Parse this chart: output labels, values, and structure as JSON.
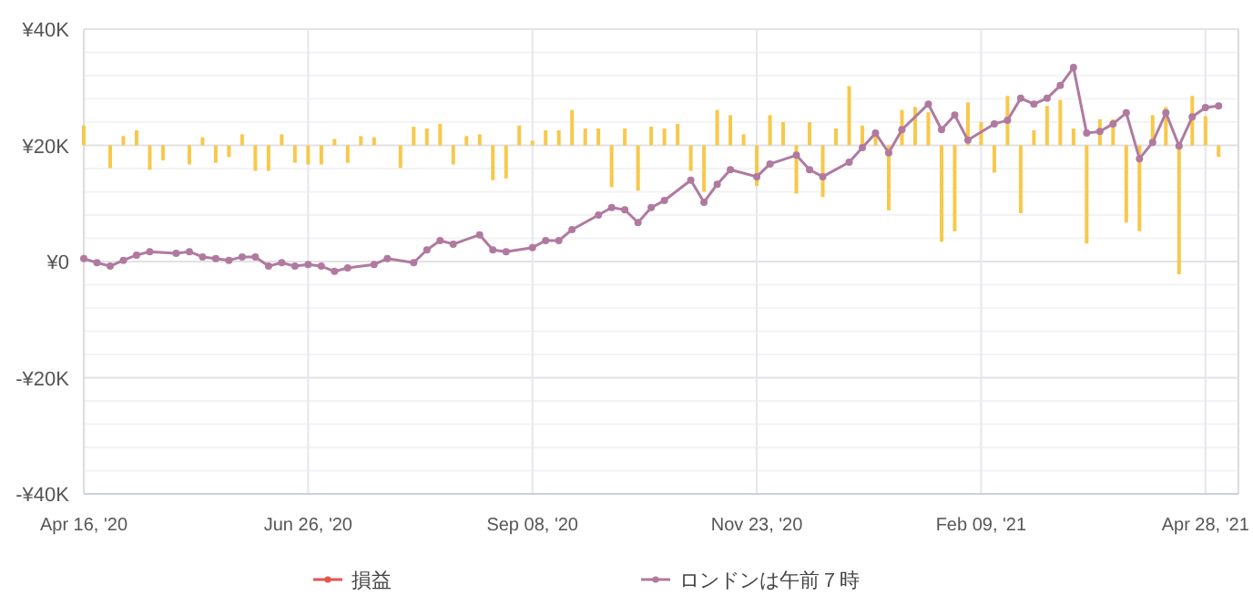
{
  "chart_data": {
    "type": "line",
    "categories": [
      "Apr 16, '20",
      null,
      null,
      null,
      null,
      null,
      null,
      null,
      null,
      null,
      null,
      null,
      null,
      null,
      null,
      null,
      null,
      "Jun 26, '20",
      null,
      null,
      null,
      null,
      null,
      null,
      null,
      null,
      null,
      null,
      null,
      null,
      null,
      null,
      null,
      null,
      "Sep 08, '20",
      null,
      null,
      null,
      null,
      null,
      null,
      null,
      null,
      null,
      null,
      null,
      null,
      null,
      null,
      null,
      null,
      "Nov 23, '20",
      null,
      null,
      null,
      null,
      null,
      null,
      null,
      null,
      null,
      null,
      null,
      null,
      null,
      null,
      null,
      null,
      "Feb 09, '21",
      null,
      null,
      null,
      null,
      null,
      null,
      null,
      null,
      null,
      null,
      null,
      null,
      null,
      null,
      null,
      null,
      "Apr 28, '21",
      null
    ],
    "ylim": [
      -40000,
      40000
    ],
    "yticks": [
      {
        "value": -40000,
        "label": "-¥40K"
      },
      {
        "value": -20000,
        "label": "-¥20K"
      },
      {
        "value": 0,
        "label": "¥0"
      },
      {
        "value": 20000,
        "label": "¥20K"
      },
      {
        "value": 40000,
        "label": "¥40K"
      }
    ],
    "grid": true,
    "legend": "bottom",
    "marker": "circle",
    "series": [
      {
        "type": "bar",
        "color": "#f8c84a",
        "values": [
          3400,
          null,
          -3900,
          1600,
          2600,
          -4200,
          -2600,
          null,
          -3300,
          1400,
          -3000,
          -2000,
          1900,
          -4400,
          -4400,
          1900,
          -3000,
          -3300,
          -3300,
          1100,
          -3000,
          1600,
          1400,
          null,
          -3900,
          3200,
          2900,
          3700,
          -3300,
          1600,
          1900,
          -6000,
          -5700,
          3400,
          800,
          2600,
          2600,
          6100,
          2900,
          2900,
          -7200,
          2900,
          -7800,
          3200,
          2900,
          3700,
          -4400,
          -8000,
          6100,
          5200,
          1900,
          -7000,
          5200,
          4000,
          -8300,
          4000,
          -8900,
          2900,
          10200,
          3400,
          2600,
          -11200,
          6100,
          6600,
          5700,
          -16600,
          -14800,
          7400,
          4000,
          -4700,
          8500,
          -11700,
          2600,
          6800,
          7800,
          2900,
          -16900,
          4500,
          4500,
          -13300,
          -14800,
          5200,
          6600,
          -22200,
          8500,
          5000,
          -2000
        ],
        "base": [
          20000,
          null,
          20000,
          20000,
          20000,
          20000,
          20000,
          null,
          20000,
          20000,
          20000,
          20000,
          20000,
          20000,
          20000,
          20000,
          20000,
          20000,
          20000,
          20000,
          20000,
          20000,
          20000,
          null,
          20000,
          20000,
          20000,
          20000,
          20000,
          20000,
          20000,
          20000,
          20000,
          20000,
          20000,
          20000,
          20000,
          20000,
          20000,
          20000,
          20000,
          20000,
          20000,
          20000,
          20000,
          20000,
          20000,
          20000,
          20000,
          20000,
          20000,
          20000,
          20000,
          20000,
          20000,
          20000,
          20000,
          20000,
          20000,
          20000,
          20000,
          20000,
          20000,
          20000,
          20000,
          20000,
          20000,
          20000,
          20000,
          20000,
          20000,
          20000,
          20000,
          20000,
          20000,
          20000,
          20000,
          20000,
          20000,
          20000,
          20000,
          20000,
          20000,
          20000,
          20000,
          20000,
          20000
        ]
      },
      {
        "name": "損益",
        "color": "#e8534f",
        "values": [
          null,
          null,
          null,
          null,
          null,
          null,
          null,
          null,
          null,
          null,
          null,
          null,
          null,
          null,
          null,
          null,
          null,
          null,
          null,
          null,
          null,
          null,
          null,
          null,
          null,
          null,
          null,
          null,
          null,
          null,
          null,
          null,
          null,
          null,
          null,
          null,
          null,
          null,
          null,
          null,
          null,
          null,
          null,
          null,
          null,
          null,
          null,
          null,
          null,
          null,
          null,
          null,
          null,
          null,
          null,
          null,
          null,
          null,
          null,
          null,
          null,
          null,
          null,
          null,
          null,
          null,
          null,
          null,
          null,
          null,
          null,
          null,
          null,
          null,
          null,
          null,
          null,
          null,
          null,
          null,
          null,
          null,
          null,
          null,
          null,
          null,
          null
        ]
      },
      {
        "name": "ロンドンは午前７時",
        "color": "#b07aa0",
        "values": [
          500,
          -200,
          -800,
          200,
          1100,
          1700,
          null,
          1400,
          1700,
          800,
          500,
          200,
          800,
          800,
          -800,
          -200,
          -800,
          -500,
          -800,
          -1700,
          -1100,
          null,
          -500,
          500,
          null,
          -200,
          2000,
          3600,
          3000,
          null,
          4600,
          2000,
          1700,
          null,
          2400,
          3600,
          3600,
          5500,
          null,
          8000,
          9300,
          8900,
          6700,
          9300,
          10500,
          null,
          14000,
          10200,
          13300,
          15800,
          null,
          14600,
          16800,
          null,
          18300,
          15800,
          14600,
          null,
          17100,
          19600,
          22100,
          18700,
          22700,
          null,
          27100,
          22700,
          25200,
          20900,
          null,
          23700,
          24300,
          28100,
          27100,
          28100,
          30300,
          33400,
          22100,
          22400,
          23700,
          25600,
          17700,
          20500,
          25600,
          19900,
          24900,
          26500,
          26800
        ]
      }
    ]
  }
}
